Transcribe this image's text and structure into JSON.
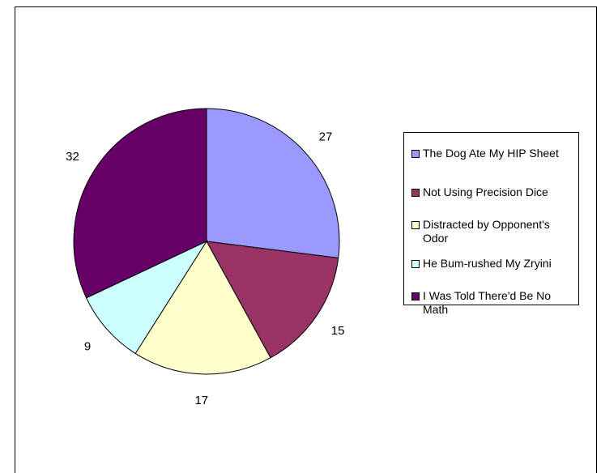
{
  "chart_data": {
    "type": "pie",
    "title": "",
    "categories": [
      "The Dog Ate My HIP Sheet",
      "Not Using Precision Dice",
      "Distracted by Opponent's Odor",
      "He Bum-rushed My Zryini",
      "I Was Told There'd Be No Math"
    ],
    "values": [
      27,
      15,
      17,
      9,
      32
    ],
    "data_labels": [
      "27",
      "15",
      "17",
      "9",
      "32"
    ],
    "colors": [
      "#9999ff",
      "#993366",
      "#ffffcc",
      "#ccffff",
      "#660066"
    ],
    "start_angle_deg": 0,
    "direction": "clockwise",
    "legend": {
      "placement": "right",
      "entries": [
        "The Dog Ate My HIP Sheet",
        "Not Using Precision Dice",
        "Distracted by Opponent's Odor",
        "He Bum-rushed My Zryini",
        "I Was Told There'd Be No Math"
      ]
    }
  }
}
